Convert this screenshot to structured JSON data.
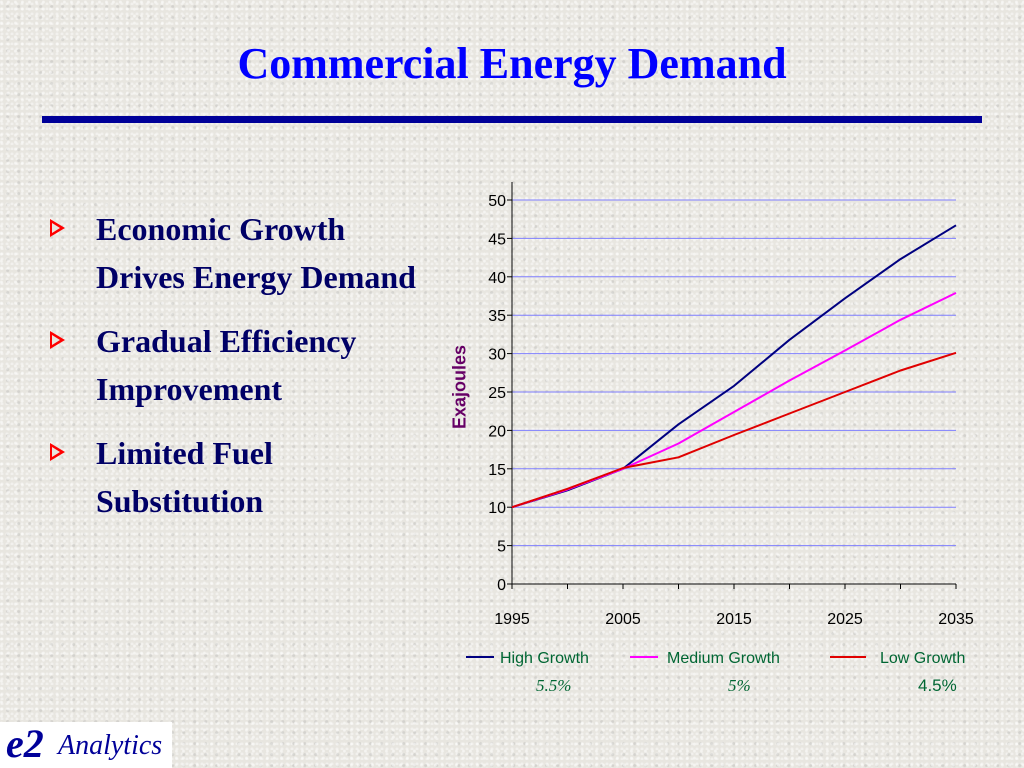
{
  "slide": {
    "title": "Commercial Energy Demand",
    "bullets": [
      "Economic Growth Drives Energy Demand",
      "Gradual Efficiency Improvement",
      "Limited Fuel Substitution"
    ],
    "logo": {
      "e": "e2",
      "text": "Analytics"
    }
  },
  "legend": [
    {
      "name": "High Growth",
      "rate": "5.5%",
      "color": "#000080"
    },
    {
      "name": "Medium Growth",
      "rate": "5%",
      "color": "#ff00ff"
    },
    {
      "name": "Low Growth",
      "rate": "4.5%",
      "color": "#e00000"
    }
  ],
  "chart_data": {
    "type": "line",
    "title": "",
    "xlabel": "",
    "ylabel": "Exajoules",
    "x": [
      1995,
      2000,
      2005,
      2010,
      2015,
      2020,
      2025,
      2030,
      2035
    ],
    "xticks": [
      1995,
      2005,
      2015,
      2025,
      2035
    ],
    "yticks": [
      0,
      5,
      10,
      15,
      20,
      25,
      30,
      35,
      40,
      45,
      50
    ],
    "xlim": [
      1995,
      2035
    ],
    "ylim": [
      0,
      50
    ],
    "grid": true,
    "legend_position": "bottom",
    "series": [
      {
        "name": "High Growth",
        "color": "#000080",
        "values": [
          10.0,
          12.2,
          15.0,
          20.8,
          25.8,
          31.8,
          37.2,
          42.3,
          46.7
        ]
      },
      {
        "name": "Medium Growth",
        "color": "#ff00ff",
        "values": [
          10.0,
          12.3,
          15.0,
          18.3,
          22.4,
          26.5,
          30.4,
          34.4,
          37.9
        ]
      },
      {
        "name": "Low Growth",
        "color": "#e00000",
        "values": [
          10.0,
          12.4,
          15.1,
          16.5,
          19.4,
          22.2,
          25.0,
          27.8,
          30.1
        ]
      }
    ]
  }
}
